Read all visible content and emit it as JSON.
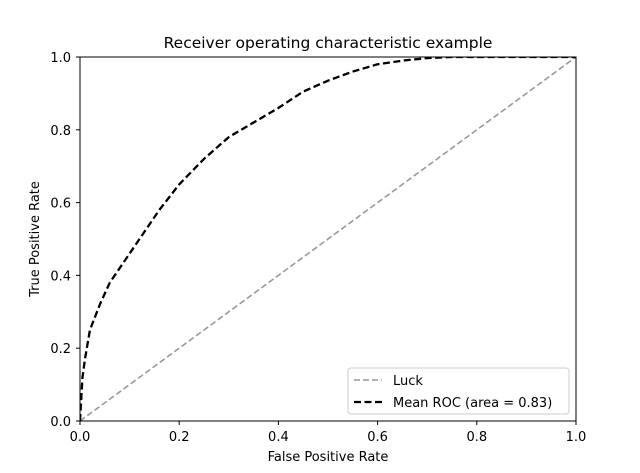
{
  "chart_data": {
    "type": "line",
    "title": "Receiver operating characteristic example",
    "xlabel": "False Positive Rate",
    "ylabel": "True Positive Rate",
    "xlim": [
      0.0,
      1.0
    ],
    "ylim": [
      0.0,
      1.0
    ],
    "xticks": [
      0.0,
      0.2,
      0.4,
      0.6,
      0.8,
      1.0
    ],
    "yticks": [
      0.0,
      0.2,
      0.4,
      0.6,
      0.8,
      1.0
    ],
    "xtick_labels": [
      "0.0",
      "0.2",
      "0.4",
      "0.6",
      "0.8",
      "1.0"
    ],
    "ytick_labels": [
      "0.0",
      "0.2",
      "0.4",
      "0.6",
      "0.8",
      "1.0"
    ],
    "grid": false,
    "legend_position": "lower-right",
    "series": [
      {
        "name": "Luck",
        "color": "#999999",
        "style": "dashed",
        "x": [
          0.0,
          1.0
        ],
        "y": [
          0.0,
          1.0
        ]
      },
      {
        "name": "Mean ROC (area = 0.83)",
        "color": "#000000",
        "style": "dashed",
        "x": [
          0.0,
          0.005,
          0.01,
          0.02,
          0.04,
          0.06,
          0.08,
          0.1,
          0.13,
          0.16,
          0.2,
          0.25,
          0.3,
          0.35,
          0.4,
          0.45,
          0.5,
          0.55,
          0.6,
          0.65,
          0.7,
          0.75,
          0.8,
          0.9,
          1.0
        ],
        "y": [
          0.0,
          0.12,
          0.17,
          0.25,
          0.32,
          0.38,
          0.42,
          0.46,
          0.52,
          0.58,
          0.65,
          0.72,
          0.78,
          0.82,
          0.86,
          0.905,
          0.935,
          0.96,
          0.98,
          0.99,
          0.997,
          1.0,
          1.0,
          1.0,
          1.0
        ]
      }
    ]
  }
}
